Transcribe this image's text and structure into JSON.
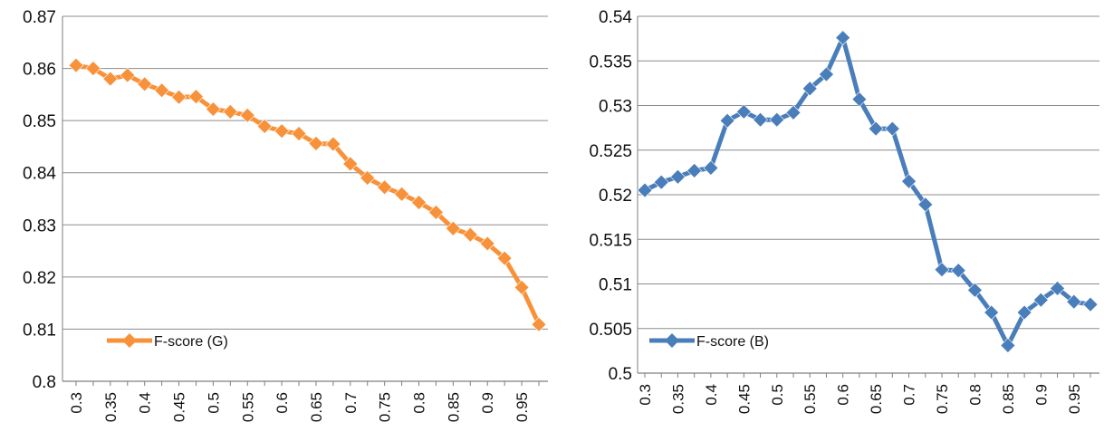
{
  "chart_data": [
    {
      "type": "line",
      "x": [
        0.3,
        0.325,
        0.35,
        0.375,
        0.4,
        0.425,
        0.45,
        0.475,
        0.5,
        0.525,
        0.55,
        0.575,
        0.6,
        0.625,
        0.65,
        0.675,
        0.7,
        0.725,
        0.75,
        0.775,
        0.8,
        0.825,
        0.85,
        0.875,
        0.9,
        0.925,
        0.95,
        0.975
      ],
      "series": [
        {
          "name": "F-score (G)",
          "color": "#F7923A",
          "values": [
            0.8606,
            0.86,
            0.858,
            0.8587,
            0.857,
            0.8558,
            0.8545,
            0.8546,
            0.8522,
            0.8517,
            0.851,
            0.8489,
            0.848,
            0.8475,
            0.8456,
            0.8455,
            0.8417,
            0.839,
            0.8372,
            0.8359,
            0.8343,
            0.8324,
            0.8293,
            0.8281,
            0.8264,
            0.8236,
            0.818,
            0.8109
          ]
        }
      ],
      "x_tick_labels": [
        "0.3",
        "0.35",
        "0.4",
        "0.45",
        "0.5",
        "0.55",
        "0.6",
        "0.65",
        "0.7",
        "0.75",
        "0.8",
        "0.85",
        "0.9",
        "0.95"
      ],
      "y_tick_labels": [
        "0.8",
        "0.81",
        "0.82",
        "0.83",
        "0.84",
        "0.85",
        "0.86",
        "0.87"
      ],
      "ylim": [
        0.8,
        0.87
      ],
      "grid": "horizontal",
      "legend_position": "bottom-left"
    },
    {
      "type": "line",
      "x": [
        0.3,
        0.325,
        0.35,
        0.375,
        0.4,
        0.425,
        0.45,
        0.475,
        0.5,
        0.525,
        0.55,
        0.575,
        0.6,
        0.625,
        0.65,
        0.675,
        0.7,
        0.725,
        0.75,
        0.775,
        0.8,
        0.825,
        0.85,
        0.875,
        0.9,
        0.925,
        0.95,
        0.975
      ],
      "series": [
        {
          "name": "F-score (B)",
          "color": "#4A7EBB",
          "values": [
            0.5205,
            0.5214,
            0.522,
            0.5227,
            0.523,
            0.5283,
            0.5293,
            0.5284,
            0.5284,
            0.5292,
            0.5319,
            0.5335,
            0.5376,
            0.5307,
            0.5274,
            0.5274,
            0.5215,
            0.5189,
            0.5116,
            0.5115,
            0.5093,
            0.5068,
            0.5031,
            0.5068,
            0.5082,
            0.5095,
            0.508,
            0.5077
          ]
        }
      ],
      "x_tick_labels": [
        "0.3",
        "0.35",
        "0.4",
        "0.45",
        "0.5",
        "0.55",
        "0.6",
        "0.65",
        "0.7",
        "0.75",
        "0.8",
        "0.85",
        "0.9",
        "0.95"
      ],
      "y_tick_labels": [
        "0.5",
        "0.505",
        "0.51",
        "0.515",
        "0.52",
        "0.525",
        "0.53",
        "0.535",
        "0.54"
      ],
      "ylim": [
        0.5,
        0.54
      ],
      "grid": "horizontal",
      "legend_position": "bottom-left"
    }
  ]
}
